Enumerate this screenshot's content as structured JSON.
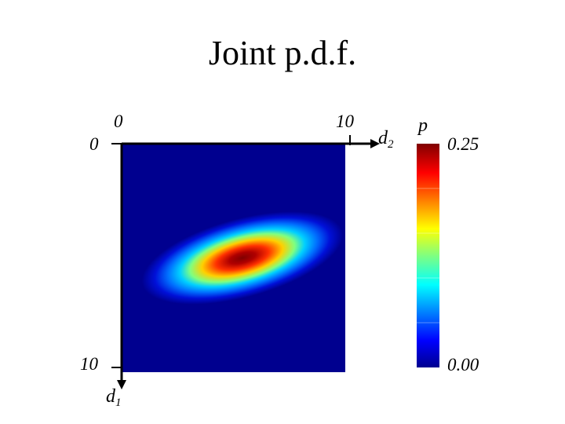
{
  "chart_data": {
    "type": "heatmap",
    "title": "Joint p.d.f.",
    "x_axis": {
      "variable": "d",
      "subscript": "2",
      "range": [
        0,
        10
      ],
      "tick_labels": [
        "0",
        "10"
      ]
    },
    "y_axis": {
      "variable": "d",
      "subscript": "1",
      "range": [
        0,
        10
      ],
      "tick_labels": [
        "0",
        "10"
      ],
      "direction": "downward"
    },
    "colorbar": {
      "label": "p",
      "range": [
        0.0,
        0.25
      ],
      "tick_labels": [
        "0.00",
        "0.25"
      ],
      "colormap": "jet"
    },
    "distribution": {
      "kind": "bivariate-gaussian",
      "mean_d2": 5.4,
      "mean_d1": 5.0,
      "peak_value": 0.25,
      "major_axis_tilt_degrees": -15,
      "elongation": "along d2 direction"
    },
    "grid": false,
    "background_value": 0.0
  }
}
